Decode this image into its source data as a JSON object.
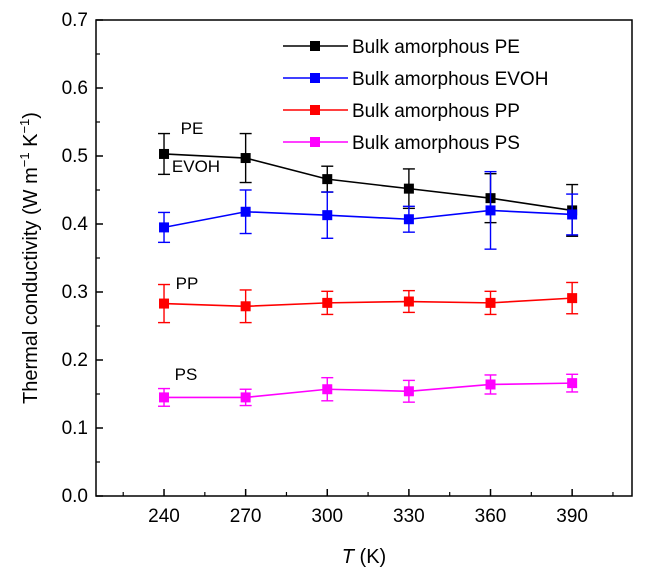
{
  "chart_data": {
    "type": "line",
    "xlabel_var": "T",
    "xlabel_unit": " (K)",
    "ylabel": "Thermal conductivity (W m",
    "ylabel_sup1": "−1",
    "ylabel_mid": " K",
    "ylabel_sup2": "−1",
    "ylabel_end": ")",
    "xlim": [
      215,
      412
    ],
    "ylim": [
      0,
      0.7
    ],
    "xticks": [
      240,
      270,
      300,
      330,
      360,
      390
    ],
    "xtick_labels": [
      "240",
      "270",
      "300",
      "330",
      "360",
      "390"
    ],
    "yticks": [
      0.0,
      0.1,
      0.2,
      0.3,
      0.4,
      0.5,
      0.6,
      0.7
    ],
    "ytick_labels": [
      "0.0",
      "0.1",
      "0.2",
      "0.3",
      "0.4",
      "0.5",
      "0.6",
      "0.7"
    ],
    "x": [
      240,
      270,
      300,
      330,
      360,
      390
    ],
    "grid": false,
    "legend_position": "top-right",
    "series": [
      {
        "name": "Bulk amorphous PE",
        "annotation": "PE",
        "color": "#000000",
        "values": [
          0.503,
          0.497,
          0.466,
          0.452,
          0.438,
          0.42
        ],
        "errors": [
          0.03,
          0.036,
          0.019,
          0.029,
          0.036,
          0.038
        ]
      },
      {
        "name": "Bulk amorphous EVOH",
        "annotation": "EVOH",
        "color": "#0000ff",
        "values": [
          0.395,
          0.418,
          0.413,
          0.407,
          0.42,
          0.414
        ],
        "errors": [
          0.022,
          0.032,
          0.034,
          0.019,
          0.057,
          0.03
        ]
      },
      {
        "name": "Bulk amorphous PP",
        "annotation": "PP",
        "color": "#ff0000",
        "values": [
          0.283,
          0.279,
          0.284,
          0.286,
          0.284,
          0.291
        ],
        "errors": [
          0.028,
          0.024,
          0.017,
          0.016,
          0.017,
          0.023
        ]
      },
      {
        "name": "Bulk amorphous PS",
        "annotation": "PS",
        "color": "#ff00ff",
        "values": [
          0.145,
          0.145,
          0.157,
          0.154,
          0.164,
          0.166
        ],
        "errors": [
          0.013,
          0.012,
          0.017,
          0.016,
          0.014,
          0.013
        ]
      }
    ]
  }
}
